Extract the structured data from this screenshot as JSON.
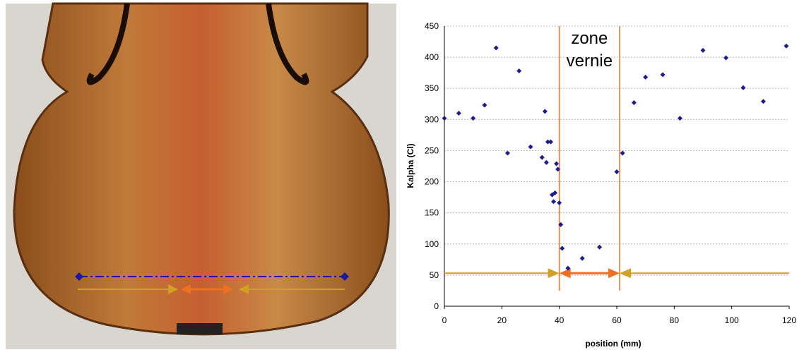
{
  "chart_data": {
    "type": "scatter",
    "xlabel": "position (mm)",
    "ylabel": "Kalpha (Cl)",
    "annotation": [
      "zone",
      "vernie"
    ],
    "x": [
      0,
      5,
      10,
      14,
      18,
      22,
      26,
      30,
      34,
      35,
      35.5,
      36,
      37,
      37.5,
      38,
      38.5,
      39,
      39.5,
      40,
      40.5,
      41,
      43,
      48,
      54,
      60,
      62,
      66,
      70,
      76,
      82,
      90,
      98,
      104,
      111,
      119
    ],
    "values": [
      302,
      310,
      302,
      323,
      415,
      246,
      378,
      256,
      239,
      313,
      231,
      264,
      264,
      179,
      168,
      182,
      229,
      220,
      166,
      131,
      93,
      61,
      77,
      95,
      216,
      246,
      327,
      368,
      372,
      302,
      411,
      399,
      351,
      329,
      418
    ],
    "color": "#1c1c8c",
    "vlines": [
      40,
      61
    ],
    "vline_color": "#f07020",
    "arrow_y": 53,
    "xlim": [
      0,
      120
    ],
    "xticks": [
      0,
      20,
      40,
      60,
      80,
      100,
      120
    ],
    "ylim": [
      0,
      450
    ],
    "yticks": [
      0,
      50,
      100,
      150,
      200,
      250,
      300,
      350,
      400,
      450
    ],
    "grid": true
  }
}
